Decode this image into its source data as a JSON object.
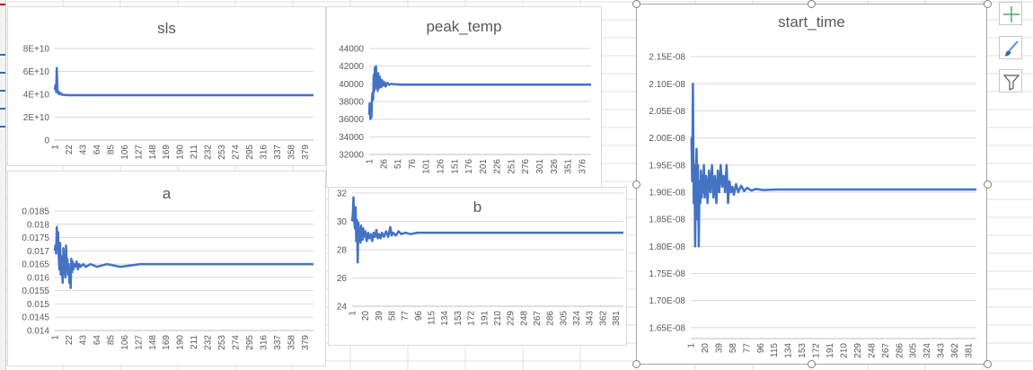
{
  "chart_data": [
    {
      "id": "sls",
      "type": "line",
      "title": "sls",
      "xlabel": "",
      "ylabel": "",
      "x_range": [
        1,
        392
      ],
      "x_ticks": [
        1,
        22,
        43,
        64,
        85,
        106,
        127,
        148,
        169,
        190,
        211,
        232,
        253,
        274,
        295,
        316,
        337,
        358,
        379
      ],
      "ylim": [
        0,
        80000000000
      ],
      "y_ticks": [
        0,
        20000000000,
        40000000000,
        60000000000,
        80000000000
      ],
      "y_tick_labels": [
        "0",
        "2E+10",
        "4E+10",
        "6E+10",
        "8E+10"
      ],
      "grid": true,
      "color": "#4472c4",
      "series": [
        {
          "points": [
            [
              1,
              44000000000
            ],
            [
              2,
              48000000000
            ],
            [
              3,
              42000000000
            ],
            [
              4,
              63000000000
            ],
            [
              5,
              45000000000
            ],
            [
              6,
              41000000000
            ],
            [
              7,
              42000000000
            ],
            [
              8,
              40000000000
            ],
            [
              10,
              41000000000
            ],
            [
              12,
              39500000000
            ],
            [
              15,
              39500000000
            ],
            [
              20,
              39200000000
            ],
            [
              30,
              39200000000
            ],
            [
              392,
              39200000000
            ]
          ]
        }
      ]
    },
    {
      "id": "peak_temp",
      "type": "line",
      "title": "peak_temp",
      "xlabel": "",
      "ylabel": "",
      "x_range": [
        1,
        392
      ],
      "x_ticks": [
        1,
        26,
        51,
        76,
        101,
        126,
        151,
        176,
        201,
        226,
        251,
        276,
        301,
        326,
        351,
        376
      ],
      "ylim": [
        32000,
        44000
      ],
      "y_ticks": [
        32000,
        34000,
        36000,
        38000,
        40000,
        42000,
        44000
      ],
      "y_tick_labels": [
        "32000",
        "34000",
        "36000",
        "38000",
        "40000",
        "42000",
        "44000"
      ],
      "grid": true,
      "color": "#4472c4",
      "series": [
        {
          "points": [
            [
              1,
              36500
            ],
            [
              2,
              37800
            ],
            [
              3,
              36000
            ],
            [
              4,
              37500
            ],
            [
              5,
              36200
            ],
            [
              6,
              38500
            ],
            [
              7,
              39000
            ],
            [
              8,
              38200
            ],
            [
              9,
              41000
            ],
            [
              10,
              39200
            ],
            [
              11,
              41800
            ],
            [
              12,
              40500
            ],
            [
              13,
              42000
            ],
            [
              14,
              39500
            ],
            [
              15,
              40800
            ],
            [
              16,
              39200
            ],
            [
              17,
              41200
            ],
            [
              18,
              39500
            ],
            [
              20,
              40800
            ],
            [
              22,
              39600
            ],
            [
              24,
              40400
            ],
            [
              26,
              39800
            ],
            [
              28,
              40200
            ],
            [
              30,
              39700
            ],
            [
              33,
              40100
            ],
            [
              36,
              39900
            ],
            [
              40,
              40000
            ],
            [
              45,
              39950
            ],
            [
              55,
              39900
            ],
            [
              392,
              39900
            ]
          ]
        }
      ]
    },
    {
      "id": "a",
      "type": "line",
      "title": "a",
      "xlabel": "",
      "ylabel": "",
      "x_range": [
        1,
        392
      ],
      "x_ticks": [
        1,
        22,
        43,
        64,
        85,
        106,
        127,
        148,
        169,
        190,
        211,
        232,
        253,
        274,
        295,
        316,
        337,
        358,
        379
      ],
      "ylim": [
        0.014,
        0.0185
      ],
      "y_ticks": [
        0.014,
        0.0145,
        0.015,
        0.0155,
        0.016,
        0.0165,
        0.017,
        0.0175,
        0.018,
        0.0185
      ],
      "y_tick_labels": [
        "0.014",
        "0.0145",
        "0.015",
        "0.0155",
        "0.016",
        "0.0165",
        "0.017",
        "0.0175",
        "0.018",
        "0.0185"
      ],
      "grid": true,
      "color": "#4472c4",
      "series": [
        {
          "points": [
            [
              1,
              0.017
            ],
            [
              2,
              0.0172
            ],
            [
              3,
              0.0169
            ],
            [
              4,
              0.0179
            ],
            [
              5,
              0.0171
            ],
            [
              6,
              0.0177
            ],
            [
              7,
              0.0168
            ],
            [
              8,
              0.0163
            ],
            [
              9,
              0.0173
            ],
            [
              10,
              0.0161
            ],
            [
              11,
              0.0168
            ],
            [
              12,
              0.0164
            ],
            [
              13,
              0.0158
            ],
            [
              14,
              0.0171
            ],
            [
              15,
              0.0162
            ],
            [
              16,
              0.0166
            ],
            [
              17,
              0.016
            ],
            [
              18,
              0.0172
            ],
            [
              19,
              0.0163
            ],
            [
              20,
              0.0167
            ],
            [
              21,
              0.0161
            ],
            [
              22,
              0.0165
            ],
            [
              23,
              0.0158
            ],
            [
              24,
              0.0163
            ],
            [
              25,
              0.0156
            ],
            [
              26,
              0.0167
            ],
            [
              27,
              0.0162
            ],
            [
              28,
              0.0166
            ],
            [
              29,
              0.0163
            ],
            [
              30,
              0.0165
            ],
            [
              32,
              0.0164
            ],
            [
              34,
              0.0166
            ],
            [
              36,
              0.0163
            ],
            [
              38,
              0.0165
            ],
            [
              40,
              0.0164
            ],
            [
              44,
              0.0165
            ],
            [
              48,
              0.0164
            ],
            [
              55,
              0.0165
            ],
            [
              65,
              0.0164
            ],
            [
              80,
              0.0165
            ],
            [
              100,
              0.0164
            ],
            [
              130,
              0.0165
            ],
            [
              392,
              0.0165
            ]
          ]
        }
      ]
    },
    {
      "id": "b",
      "type": "line",
      "title": "b",
      "xlabel": "",
      "ylabel": "",
      "x_range": [
        1,
        392
      ],
      "x_ticks": [
        1,
        20,
        39,
        58,
        77,
        96,
        115,
        134,
        153,
        172,
        191,
        210,
        229,
        248,
        267,
        286,
        305,
        324,
        343,
        362,
        381
      ],
      "ylim": [
        24,
        32
      ],
      "y_ticks": [
        24,
        26,
        28,
        30,
        32
      ],
      "y_tick_labels": [
        "24",
        "26",
        "28",
        "30",
        "32"
      ],
      "grid": true,
      "color": "#4472c4",
      "series": [
        {
          "points": [
            [
              1,
              30
            ],
            [
              2,
              30.5
            ],
            [
              3,
              31.7
            ],
            [
              4,
              30.2
            ],
            [
              5,
              29.5
            ],
            [
              6,
              31
            ],
            [
              7,
              28.6
            ],
            [
              8,
              30.1
            ],
            [
              9,
              27.1
            ],
            [
              10,
              29.9
            ],
            [
              11,
              28.9
            ],
            [
              12,
              29.4
            ],
            [
              13,
              28.5
            ],
            [
              14,
              29.7
            ],
            [
              15,
              29.1
            ],
            [
              16,
              28.7
            ],
            [
              17,
              29.5
            ],
            [
              18,
              28.9
            ],
            [
              20,
              29.3
            ],
            [
              22,
              28.6
            ],
            [
              24,
              29.2
            ],
            [
              26,
              28.8
            ],
            [
              28,
              29.1
            ],
            [
              30,
              28.6
            ],
            [
              32,
              29.2
            ],
            [
              34,
              28.9
            ],
            [
              36,
              29.4
            ],
            [
              38,
              28.8
            ],
            [
              40,
              29.1
            ],
            [
              42,
              28.8
            ],
            [
              44,
              29.2
            ],
            [
              47,
              28.9
            ],
            [
              50,
              29.3
            ],
            [
              53,
              28.9
            ],
            [
              56,
              29.6
            ],
            [
              58,
              29.0
            ],
            [
              60,
              29.2
            ],
            [
              64,
              29.0
            ],
            [
              68,
              29.3
            ],
            [
              72,
              29.1
            ],
            [
              78,
              29.2
            ],
            [
              85,
              29.1
            ],
            [
              95,
              29.2
            ],
            [
              392,
              29.2
            ]
          ]
        }
      ]
    },
    {
      "id": "start_time",
      "type": "line",
      "title": "start_time",
      "xlabel": "",
      "ylabel": "",
      "x_range": [
        1,
        392
      ],
      "x_ticks": [
        1,
        20,
        39,
        58,
        77,
        96,
        115,
        134,
        153,
        172,
        191,
        210,
        229,
        248,
        267,
        286,
        305,
        324,
        343,
        362,
        381
      ],
      "ylim": [
        1.63e-08,
        2.17e-08
      ],
      "y_ticks": [
        1.65e-08,
        1.7e-08,
        1.75e-08,
        1.8e-08,
        1.85e-08,
        1.9e-08,
        1.95e-08,
        2e-08,
        2.05e-08,
        2.1e-08,
        2.15e-08
      ],
      "y_tick_labels": [
        "1.65E-08",
        "1.70E-08",
        "1.75E-08",
        "1.80E-08",
        "1.85E-08",
        "1.90E-08",
        "1.95E-08",
        "2.00E-08",
        "2.05E-08",
        "2.10E-08",
        "2.15E-08"
      ],
      "grid": true,
      "color": "#4472c4",
      "series": [
        {
          "points": [
            [
              1,
              2e-08
            ],
            [
              2,
              2e-08
            ],
            [
              3,
              1.92e-08
            ],
            [
              4,
              2.1e-08
            ],
            [
              5,
              1.88e-08
            ],
            [
              6,
              1.95e-08
            ],
            [
              7,
              1.8e-08
            ],
            [
              8,
              1.93e-08
            ],
            [
              9,
              1.98e-08
            ],
            [
              10,
              1.85e-08
            ],
            [
              11,
              1.95e-08
            ],
            [
              12,
              1.8e-08
            ],
            [
              13,
              1.92e-08
            ],
            [
              14,
              1.88e-08
            ],
            [
              15,
              1.94e-08
            ],
            [
              16,
              1.89e-08
            ],
            [
              17,
              1.93e-08
            ],
            [
              18,
              1.9e-08
            ],
            [
              19,
              1.95e-08
            ],
            [
              20,
              1.89e-08
            ],
            [
              22,
              1.93e-08
            ],
            [
              24,
              1.88e-08
            ],
            [
              26,
              1.94e-08
            ],
            [
              28,
              1.9e-08
            ],
            [
              30,
              1.95e-08
            ],
            [
              32,
              1.89e-08
            ],
            [
              34,
              1.93e-08
            ],
            [
              36,
              1.88e-08
            ],
            [
              38,
              1.94e-08
            ],
            [
              40,
              1.9e-08
            ],
            [
              42,
              1.95e-08
            ],
            [
              44,
              1.91e-08
            ],
            [
              46,
              1.93e-08
            ],
            [
              48,
              1.9e-08
            ],
            [
              50,
              1.95e-08
            ],
            [
              52,
              1.88e-08
            ],
            [
              54,
              1.92e-08
            ],
            [
              56,
              1.9e-08
            ],
            [
              58,
              1.91e-08
            ],
            [
              60,
              1.895e-08
            ],
            [
              63,
              1.915e-08
            ],
            [
              66,
              1.9e-08
            ],
            [
              70,
              1.912e-08
            ],
            [
              74,
              1.902e-08
            ],
            [
              78,
              1.908e-08
            ],
            [
              84,
              1.903e-08
            ],
            [
              90,
              1.906e-08
            ],
            [
              100,
              1.904e-08
            ],
            [
              120,
              1.905e-08
            ],
            [
              392,
              1.905e-08
            ]
          ]
        }
      ]
    }
  ],
  "toolbar": {
    "chart_elements_icon": "plus-icon",
    "chart_styles_icon": "brush-icon",
    "chart_filters_icon": "filter-icon"
  }
}
